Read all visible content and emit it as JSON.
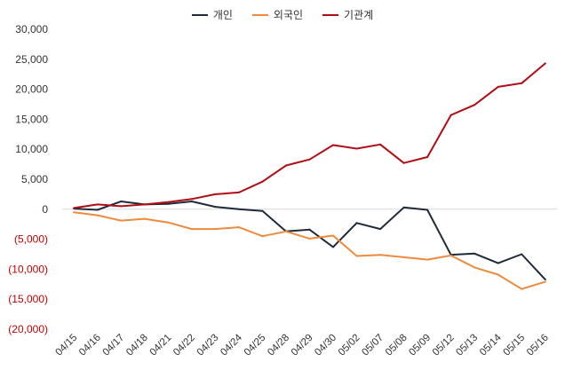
{
  "chart_data": {
    "type": "line",
    "title": "",
    "xlabel": "",
    "ylabel": "",
    "ylim": [
      -20000,
      30000
    ],
    "yticks": [
      30000,
      25000,
      20000,
      15000,
      10000,
      5000,
      0,
      -5000,
      -10000,
      -15000,
      -20000
    ],
    "ytick_labels": [
      "30,000",
      "25,000",
      "20,000",
      "15,000",
      "10,000",
      "5,000",
      "0",
      "(5,000)",
      "(10,000)",
      "(15,000)",
      "(20,000)"
    ],
    "negative_label_color": "#c00000",
    "grid": false,
    "legend_position": "top-center",
    "categories": [
      "04/15",
      "04/16",
      "04/17",
      "04/18",
      "04/21",
      "04/22",
      "04/23",
      "04/24",
      "04/25",
      "04/28",
      "04/29",
      "04/30",
      "05/02",
      "05/07",
      "05/08",
      "05/09",
      "05/12",
      "05/13",
      "05/14",
      "05/15",
      "05/16"
    ],
    "series": [
      {
        "name": "개인",
        "color": "#1f2a3a",
        "values": [
          100,
          -100,
          1300,
          800,
          900,
          1300,
          400,
          0,
          -300,
          -3700,
          -3400,
          -6300,
          -2300,
          -3300,
          300,
          -100,
          -7600,
          -7400,
          -9000,
          -7500,
          -11700
        ]
      },
      {
        "name": "외국인",
        "color": "#ed8a3d",
        "values": [
          -500,
          -1000,
          -1900,
          -1600,
          -2200,
          -3300,
          -3300,
          -3000,
          -4500,
          -3700,
          -4900,
          -4400,
          -7800,
          -7600,
          -8000,
          -8400,
          -7700,
          -9700,
          -10900,
          -13300,
          -12100
        ]
      },
      {
        "name": "기관계",
        "color": "#b00d14",
        "values": [
          200,
          800,
          500,
          800,
          1200,
          1700,
          2500,
          2800,
          4600,
          7300,
          8300,
          10700,
          10100,
          10800,
          7700,
          8700,
          15700,
          17400,
          20400,
          21000,
          24300
        ]
      }
    ]
  }
}
